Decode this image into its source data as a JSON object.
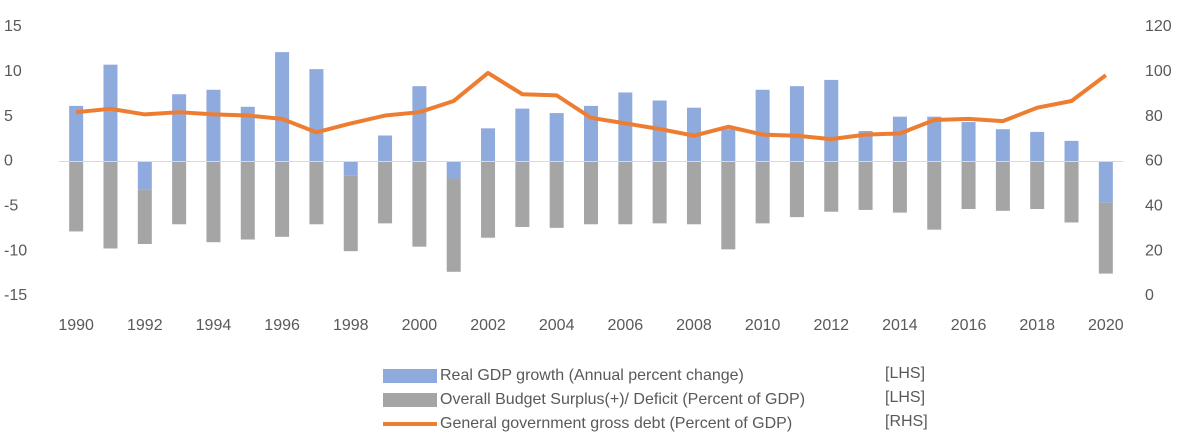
{
  "chart_data": {
    "type": "bar",
    "categories": [
      "1990",
      null,
      "1992",
      null,
      "1994",
      null,
      "1996",
      null,
      "1998",
      null,
      "2000",
      null,
      "2002",
      null,
      "2004",
      null,
      "2006",
      null,
      "2008",
      null,
      "2010",
      null,
      "2012",
      null,
      "2014",
      null,
      "2016",
      null,
      "2018",
      null,
      "2020"
    ],
    "ylim": [
      -15,
      15
    ],
    "yticks": [
      -15,
      -10,
      -5,
      0,
      5,
      10,
      15
    ],
    "y2lim": [
      0,
      120
    ],
    "y2ticks": [
      0,
      20,
      40,
      60,
      80,
      100,
      120
    ],
    "stacked": true,
    "series": [
      {
        "name": "Real GDP growth (Annual percent change)",
        "legend_tag": "[LHS]",
        "type": "bar",
        "color": "#8faadc",
        "values": [
          6.2,
          10.8,
          -3.1,
          7.5,
          8.0,
          6.1,
          12.2,
          10.3,
          -1.6,
          2.9,
          8.4,
          -1.9,
          3.7,
          5.9,
          5.4,
          6.2,
          7.7,
          6.8,
          6.0,
          3.6,
          8.0,
          8.4,
          9.1,
          3.4,
          5.0,
          5.0,
          4.4,
          3.6,
          3.3,
          2.3,
          -4.6
        ]
      },
      {
        "name": "Overall Budget Surplus(+)/ Deficit (Percent of GDP)",
        "legend_tag": "[LHS]",
        "type": "bar",
        "color": "#a5a5a5",
        "values": [
          -7.8,
          -9.7,
          -6.1,
          -7.0,
          -9.0,
          -8.7,
          -8.4,
          -7.0,
          -8.4,
          -6.9,
          -9.5,
          -10.4,
          -8.5,
          -7.3,
          -7.4,
          -7.0,
          -7.0,
          -6.9,
          -7.0,
          -9.8,
          -6.9,
          -6.2,
          -5.6,
          -5.4,
          -5.7,
          -7.6,
          -5.3,
          -5.5,
          -5.3,
          -6.8,
          -7.9
        ]
      },
      {
        "name": "General government gross debt (Percent of GDP)",
        "legend_tag": "[RHS]",
        "type": "line",
        "axis": "y2",
        "color": "#ed7d31",
        "values": [
          82,
          83.5,
          81,
          82,
          81,
          80.5,
          79,
          73,
          77,
          80.5,
          82,
          87,
          99.5,
          90,
          89.5,
          79.5,
          77,
          74.5,
          71.5,
          75.5,
          72,
          71.5,
          70,
          72,
          72.5,
          78.5,
          79,
          78,
          84,
          87,
          98.5
        ]
      }
    ]
  }
}
